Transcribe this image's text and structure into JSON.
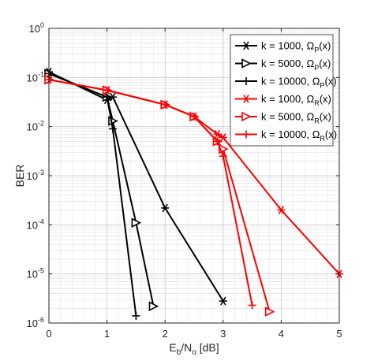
{
  "chart_data": {
    "type": "line",
    "title": "",
    "xlabel": "E_b/N_o [dB]",
    "xlabel_parts": {
      "main": "E",
      "sub1": "b",
      "mid": "/N",
      "sub2": "o",
      "end": " [dB]"
    },
    "ylabel": "BER",
    "xlim": [
      0,
      5
    ],
    "ylim": [
      1e-06,
      1
    ],
    "yscale": "log",
    "grid": true,
    "legend_position": "top-right",
    "x_ticks": [
      "0",
      "1",
      "2",
      "3",
      "4",
      "5"
    ],
    "y_ticks": [
      {
        "base": "10",
        "exp": "0"
      },
      {
        "base": "10",
        "exp": "-1"
      },
      {
        "base": "10",
        "exp": "-2"
      },
      {
        "base": "10",
        "exp": "-3"
      },
      {
        "base": "10",
        "exp": "-4"
      },
      {
        "base": "10",
        "exp": "-5"
      },
      {
        "base": "10",
        "exp": "-6"
      }
    ],
    "series": [
      {
        "name": "k = 1000, Ω_P(x)",
        "legend": {
          "prefix": "k = 1000, ",
          "greek": "Ω",
          "sub": "P",
          "suffix": "(x)"
        },
        "color": "#000000",
        "marker": "asterisk",
        "x": [
          0,
          1,
          1.1,
          2,
          3
        ],
        "y": [
          0.13,
          0.035,
          0.04,
          0.00022,
          2.8e-06
        ]
      },
      {
        "name": "k = 5000, Ω_P(x)",
        "legend": {
          "prefix": "k = 5000, ",
          "greek": "Ω",
          "sub": "P",
          "suffix": "(x)"
        },
        "color": "#000000",
        "marker": "triangle-right",
        "x": [
          0,
          1,
          1.1,
          1.5,
          1.8
        ],
        "y": [
          0.12,
          0.04,
          0.013,
          0.00011,
          2.2e-06
        ]
      },
      {
        "name": "k = 10000, Ω_P(x)",
        "legend": {
          "prefix": "k = 10000, ",
          "greek": "Ω",
          "sub": "P",
          "suffix": "(x)"
        },
        "color": "#000000",
        "marker": "plus",
        "x": [
          0,
          1,
          1.1,
          1.5
        ],
        "y": [
          0.12,
          0.04,
          0.009,
          1.4e-06
        ]
      },
      {
        "name": "k = 1000, Ω_R(x)",
        "legend": {
          "prefix": "k = 1000, ",
          "greek": "Ω",
          "sub": "R",
          "suffix": "(x)"
        },
        "color": "#ff0000",
        "marker": "asterisk",
        "x": [
          0,
          1,
          2,
          2.5,
          2.9,
          3,
          4,
          5
        ],
        "y": [
          0.09,
          0.055,
          0.028,
          0.016,
          0.007,
          0.006,
          0.0002,
          1e-05
        ]
      },
      {
        "name": "k = 5000, Ω_R(x)",
        "legend": {
          "prefix": "k = 5000, ",
          "greek": "Ω",
          "sub": "R",
          "suffix": "(x)"
        },
        "color": "#ff0000",
        "marker": "triangle-right",
        "x": [
          0,
          1,
          2,
          2.5,
          2.9,
          3,
          3.8
        ],
        "y": [
          0.09,
          0.055,
          0.028,
          0.016,
          0.005,
          0.0035,
          1.7e-06
        ]
      },
      {
        "name": "k = 10000, Ω_R(x)",
        "legend": {
          "prefix": "k = 10000, ",
          "greek": "Ω",
          "sub": "R",
          "suffix": "(x)"
        },
        "color": "#ff0000",
        "marker": "plus",
        "x": [
          0,
          1,
          2,
          2.5,
          2.9,
          3,
          3.5
        ],
        "y": [
          0.09,
          0.055,
          0.028,
          0.016,
          0.005,
          0.0025,
          2.3e-06
        ]
      }
    ]
  }
}
